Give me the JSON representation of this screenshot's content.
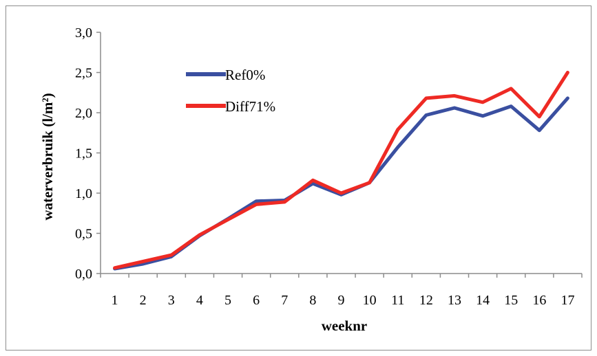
{
  "chart_data": {
    "type": "line",
    "title": "",
    "xlabel": "weeknr",
    "ylabel": "waterverbruik (l/m²)",
    "ylim": [
      0,
      3
    ],
    "yticks": [
      "0,0",
      "0,5",
      "1,0",
      "1,5",
      "2,0",
      "2,5",
      "3,0"
    ],
    "ytick_values": [
      0,
      0.5,
      1,
      1.5,
      2,
      2.5,
      3
    ],
    "categories": [
      "1",
      "2",
      "3",
      "4",
      "5",
      "6",
      "7",
      "8",
      "9",
      "10",
      "11",
      "12",
      "13",
      "14",
      "15",
      "16",
      "17"
    ],
    "grid": false,
    "legend_position": "top-left",
    "series": [
      {
        "name": "Ref0%",
        "color": "#3a4fa0",
        "values": [
          0.06,
          0.12,
          0.21,
          0.47,
          0.68,
          0.9,
          0.91,
          1.12,
          0.98,
          1.13,
          1.57,
          1.97,
          2.06,
          1.96,
          2.08,
          1.78,
          2.18
        ]
      },
      {
        "name": "Diff71%",
        "color": "#ee2a24",
        "values": [
          0.07,
          0.15,
          0.23,
          0.48,
          0.67,
          0.86,
          0.89,
          1.16,
          1.0,
          1.13,
          1.79,
          2.18,
          2.21,
          2.13,
          2.3,
          1.95,
          2.5
        ]
      }
    ]
  }
}
